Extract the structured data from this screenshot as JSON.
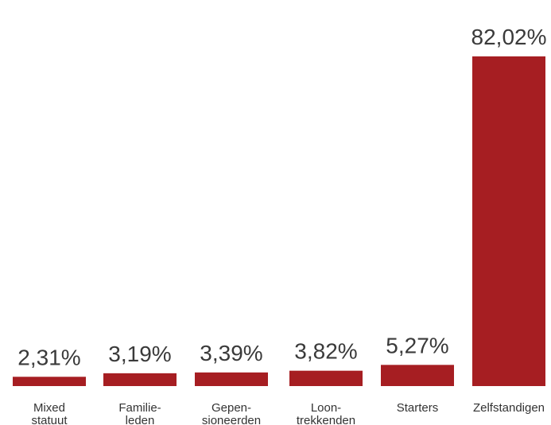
{
  "chart_data": {
    "type": "bar",
    "categories": [
      [
        "Mixed",
        "statuut"
      ],
      [
        "Familie-",
        "leden"
      ],
      [
        "Gepen-",
        "sioneerden"
      ],
      [
        "Loon-",
        "trekkenden"
      ],
      [
        "Starters"
      ],
      [
        "Zelfstandigen"
      ]
    ],
    "values": [
      2.31,
      3.19,
      3.39,
      3.82,
      5.27,
      82.02
    ],
    "value_labels": [
      "2,31%",
      "3,19%",
      "3,39%",
      "3,82%",
      "5,27%",
      "82,02%"
    ],
    "title": "",
    "xlabel": "",
    "ylabel": "",
    "ylim": [
      0,
      82.02
    ],
    "grid": false,
    "legend": "none",
    "bar_color": "#a61e22"
  }
}
